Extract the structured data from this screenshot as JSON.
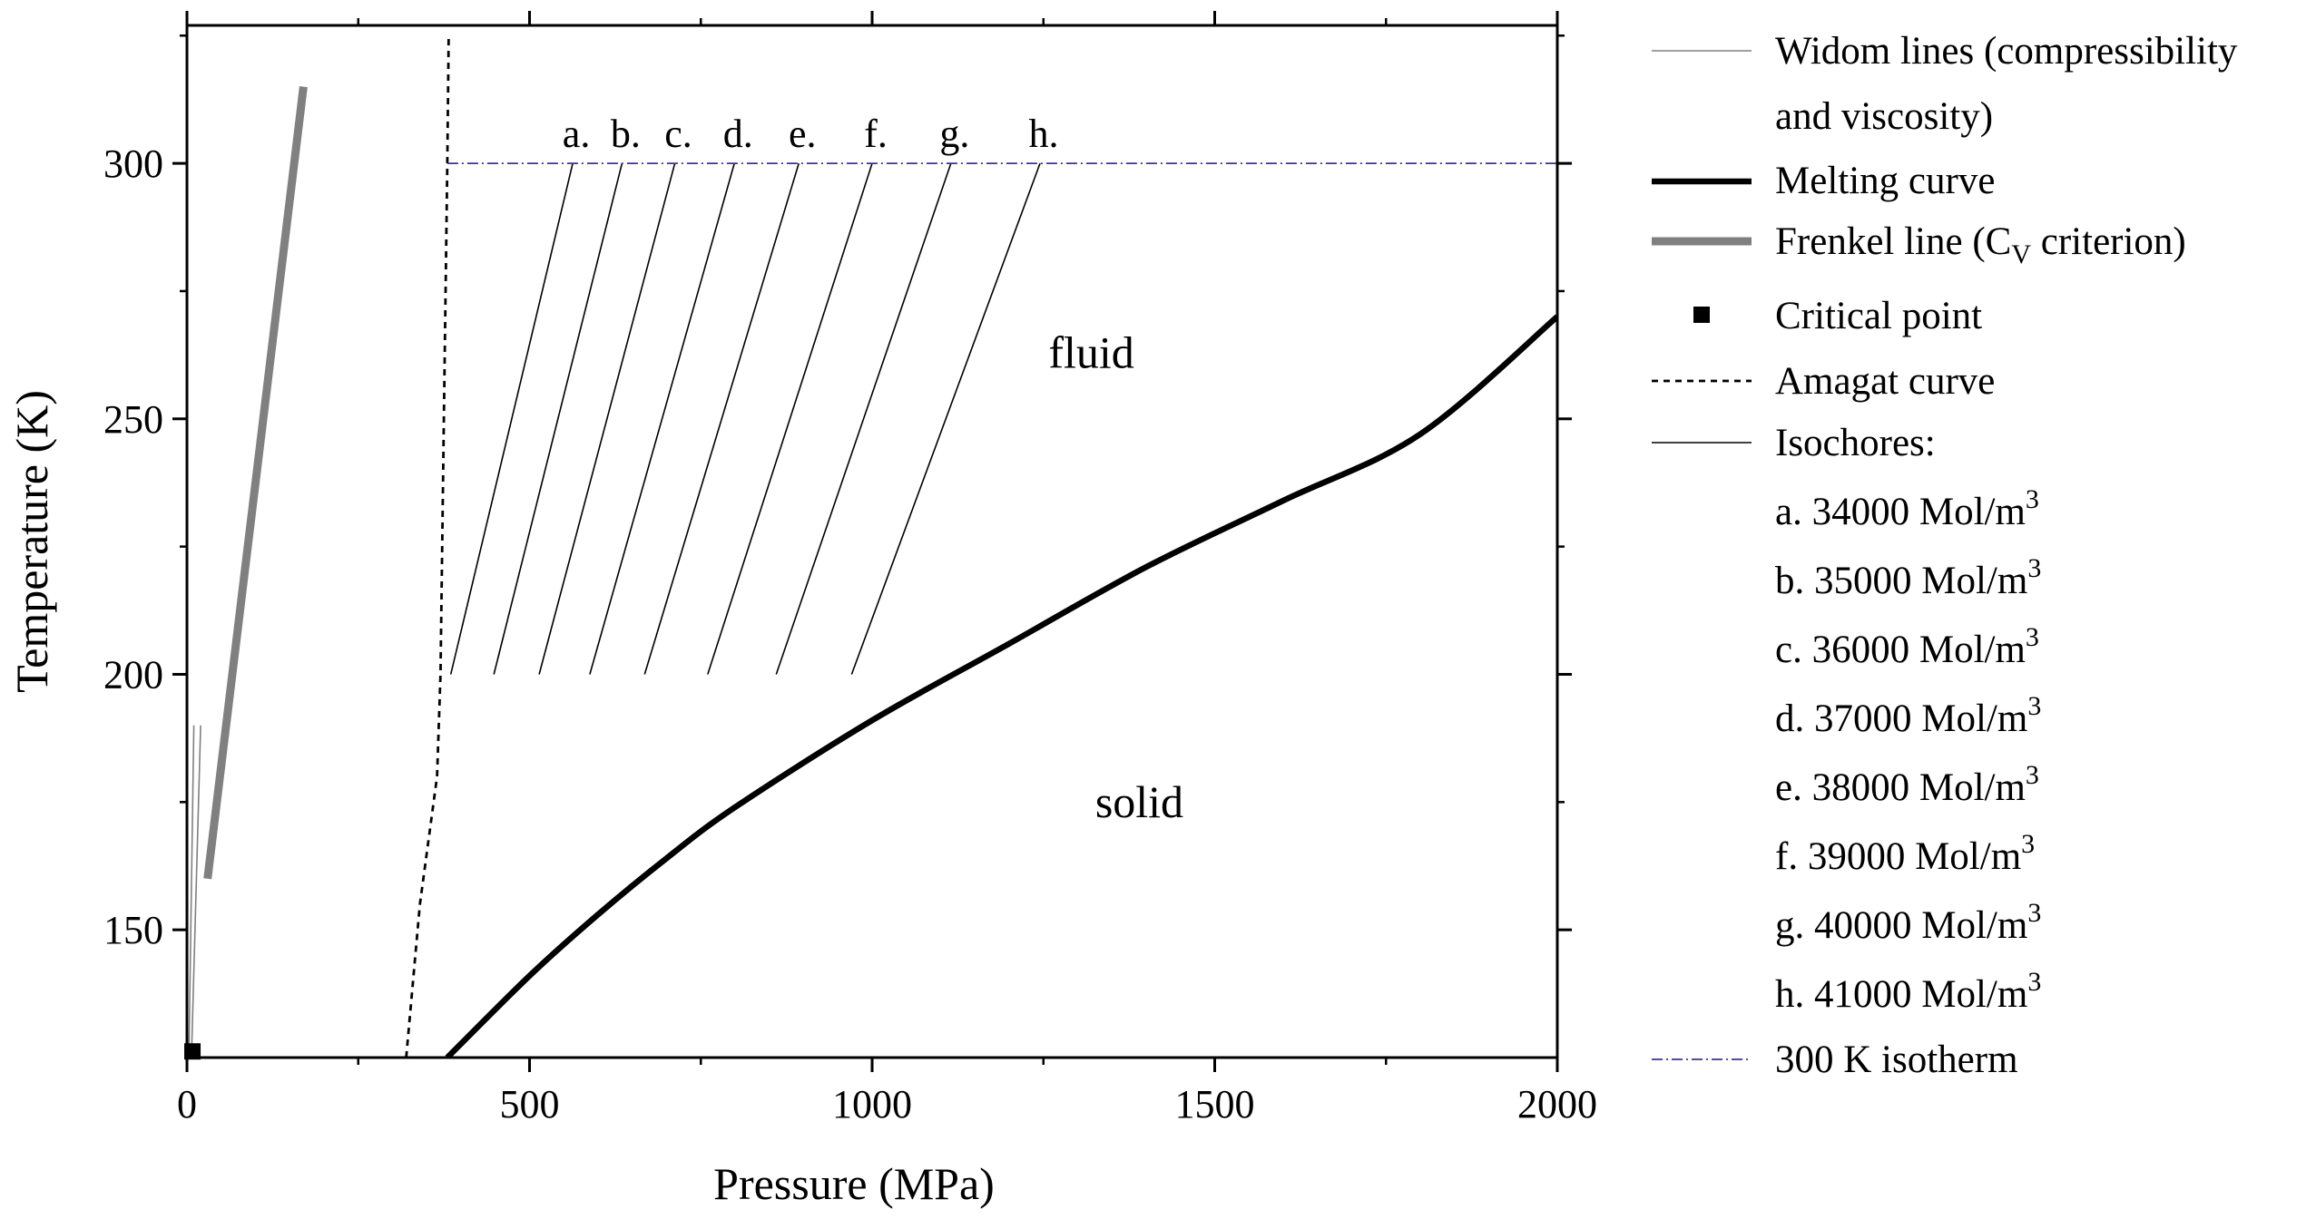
{
  "chart_data": {
    "type": "line",
    "xlabel": "Pressure (MPa)",
    "ylabel": "Temperature (K)",
    "xlim": [
      0,
      2000
    ],
    "ylim": [
      125,
      327
    ],
    "xticks": [
      0,
      500,
      1000,
      1500,
      2000
    ],
    "yticks": [
      150,
      200,
      250,
      300
    ],
    "grid": false,
    "legend_position": "right",
    "series": [
      {
        "name": "Widom lines (compressibility and viscosity)",
        "color": "#808080",
        "style": "thin",
        "lines": [
          [
            [
              3,
              127
            ],
            [
              10,
              190
            ]
          ],
          [
            [
              7,
              127
            ],
            [
              20,
              190
            ]
          ]
        ]
      },
      {
        "name": "Melting curve",
        "color": "#000000",
        "style": "thick",
        "points": [
          [
            380,
            125
          ],
          [
            500,
            141
          ],
          [
            600,
            153
          ],
          [
            700,
            164
          ],
          [
            800,
            174
          ],
          [
            1000,
            191
          ],
          [
            1200,
            206
          ],
          [
            1400,
            221
          ],
          [
            1600,
            234
          ],
          [
            1800,
            247
          ],
          [
            2000,
            270
          ]
        ]
      },
      {
        "name": "Frenkel line (C",
        "name_sub": "V",
        "name_suffix": " criterion)",
        "color": "#808080",
        "style": "thicker",
        "points": [
          [
            30,
            160
          ],
          [
            170,
            315
          ]
        ]
      },
      {
        "name": "Critical point",
        "color": "#000000",
        "style": "square",
        "points": [
          [
            8,
            126.2
          ]
        ]
      },
      {
        "name": "Amagat curve",
        "color": "#000000",
        "style": "dashed",
        "points": [
          [
            320,
            125
          ],
          [
            340,
            155
          ],
          [
            365,
            180
          ],
          [
            370,
            200
          ],
          [
            375,
            250
          ],
          [
            380,
            300
          ],
          [
            382,
            325
          ]
        ]
      },
      {
        "name": "Isochores:",
        "color": "#000000",
        "style": "thin",
        "isochores": [
          {
            "label": "a.",
            "legend": "a. 34000 Mol/m",
            "p200": 385,
            "p300": 563
          },
          {
            "label": "b.",
            "legend": "b. 35000 Mol/m",
            "p200": 448,
            "p300": 635
          },
          {
            "label": "c.",
            "legend": "c. 36000 Mol/m",
            "p200": 514,
            "p300": 712
          },
          {
            "label": "d.",
            "legend": "d. 37000 Mol/m",
            "p200": 588,
            "p300": 799
          },
          {
            "label": "e.",
            "legend": "e. 38000 Mol/m",
            "p200": 668,
            "p300": 893
          },
          {
            "label": "f.",
            "legend": "f. 39000 Mol/m",
            "p200": 760,
            "p300": 1000
          },
          {
            "label": "g.",
            "legend": "g. 40000 Mol/m",
            "p200": 860,
            "p300": 1115
          },
          {
            "label": "h.",
            "legend": "h. 41000 Mol/m",
            "p200": 970,
            "p300": 1245
          }
        ]
      },
      {
        "name": "300 K isotherm",
        "color": "#4b2f8f",
        "style": "dashdot",
        "points": [
          [
            380,
            300
          ],
          [
            2000,
            300
          ]
        ]
      }
    ],
    "annotations": [
      {
        "text": "fluid",
        "x": 1320,
        "y": 260
      },
      {
        "text": "solid",
        "x": 1390,
        "y": 172
      }
    ]
  }
}
